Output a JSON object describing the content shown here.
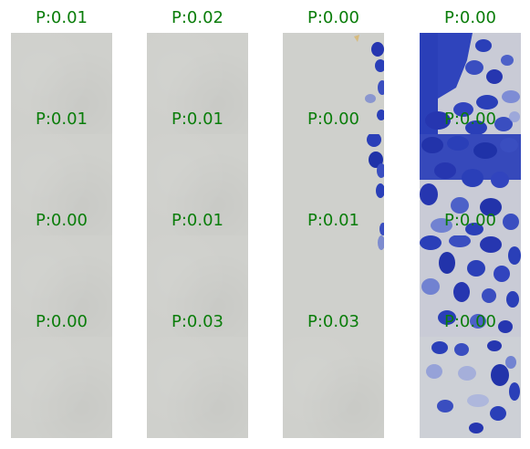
{
  "patch_grid": {
    "rows": [
      [
        "P:0.01",
        "P:0.02",
        "P:0.00",
        "P:0.00"
      ],
      [
        "P:0.01",
        "P:0.01",
        "P:0.00",
        "P:0.00"
      ],
      [
        "P:0.00",
        "P:0.01",
        "P:0.01",
        "P:0.00"
      ],
      [
        "P:0.00",
        "P:0.03",
        "P:0.03",
        "P:0.00"
      ]
    ]
  },
  "colors": {
    "label": "#0a7d0a",
    "background_tissue": "#cfd0cc",
    "cell_stain": "#2a3fb8"
  }
}
